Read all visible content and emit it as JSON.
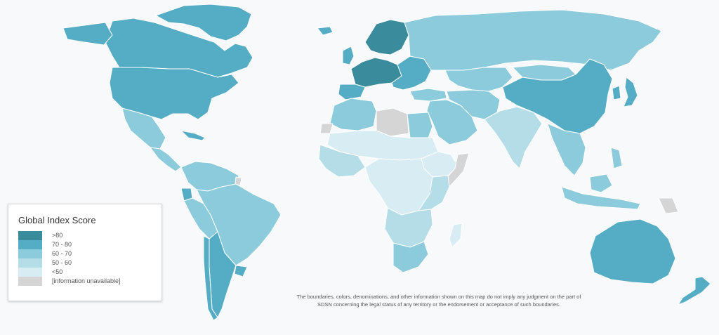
{
  "legend": {
    "title": "Global Index Score",
    "items": [
      {
        "label": ">80",
        "color": "#3a8b9c"
      },
      {
        "label": "70 - 80",
        "color": "#55adc5"
      },
      {
        "label": "60 - 70",
        "color": "#8ccbdc"
      },
      {
        "label": "50 - 60",
        "color": "#b4dde8"
      },
      {
        "label": "<50",
        "color": "#d8ecf3"
      },
      {
        "label": "[information unavailable]",
        "color": "#d5d5d5"
      }
    ]
  },
  "disclaimer": {
    "line1": "The boundaries, colors, denominations, and other information shown on this map do not imply any judgment on the part of",
    "line2": "SDSN concerning the legal status of any territory or the endorsement or acceptance of such boundaries."
  },
  "regions": [
    {
      "id": "canada",
      "band": "70 - 80"
    },
    {
      "id": "usa",
      "band": "70 - 80"
    },
    {
      "id": "greenland",
      "band": "70 - 80"
    },
    {
      "id": "mexico",
      "band": "60 - 70"
    },
    {
      "id": "central-america",
      "band": "60 - 70"
    },
    {
      "id": "caribbean",
      "band": "70 - 80"
    },
    {
      "id": "south-america-north",
      "band": "60 - 70"
    },
    {
      "id": "brazil",
      "band": "60 - 70"
    },
    {
      "id": "ecuador",
      "band": "70 - 80"
    },
    {
      "id": "argentina",
      "band": "70 - 80"
    },
    {
      "id": "chile",
      "band": "70 - 80"
    },
    {
      "id": "uruguay",
      "band": "70 - 80"
    },
    {
      "id": "french-guiana",
      "band": "[information unavailable]"
    },
    {
      "id": "iceland",
      "band": "70 - 80"
    },
    {
      "id": "uk",
      "band": "70 - 80"
    },
    {
      "id": "nordics",
      "band": ">80"
    },
    {
      "id": "western-europe",
      "band": ">80"
    },
    {
      "id": "iberia",
      "band": "70 - 80"
    },
    {
      "id": "eastern-europe",
      "band": "70 - 80"
    },
    {
      "id": "russia",
      "band": "60 - 70"
    },
    {
      "id": "central-asia",
      "band": "60 - 70"
    },
    {
      "id": "turkey",
      "band": "60 - 70"
    },
    {
      "id": "middle-east",
      "band": "60 - 70"
    },
    {
      "id": "iran-afghanistan",
      "band": "60 - 70"
    },
    {
      "id": "india",
      "band": "50 - 60"
    },
    {
      "id": "china",
      "band": "70 - 80"
    },
    {
      "id": "mongolia",
      "band": "60 - 70"
    },
    {
      "id": "japan",
      "band": "70 - 80"
    },
    {
      "id": "korea",
      "band": "70 - 80"
    },
    {
      "id": "southeast-asia",
      "band": "60 - 70"
    },
    {
      "id": "indonesia",
      "band": "60 - 70"
    },
    {
      "id": "philippines",
      "band": "60 - 70"
    },
    {
      "id": "png",
      "band": "[information unavailable]"
    },
    {
      "id": "australia",
      "band": "70 - 80"
    },
    {
      "id": "new-zealand",
      "band": "70 - 80"
    },
    {
      "id": "north-africa",
      "band": "60 - 70"
    },
    {
      "id": "libya",
      "band": "[information unavailable]"
    },
    {
      "id": "western-sahara",
      "band": "[information unavailable]"
    },
    {
      "id": "sahel",
      "band": "<50"
    },
    {
      "id": "west-africa",
      "band": "50 - 60"
    },
    {
      "id": "horn-africa",
      "band": "<50"
    },
    {
      "id": "somalia",
      "band": "[information unavailable]"
    },
    {
      "id": "central-africa",
      "band": "<50"
    },
    {
      "id": "east-africa",
      "band": "50 - 60"
    },
    {
      "id": "southern-africa",
      "band": "50 - 60"
    },
    {
      "id": "south-africa",
      "band": "60 - 70"
    },
    {
      "id": "madagascar",
      "band": "<50"
    }
  ]
}
